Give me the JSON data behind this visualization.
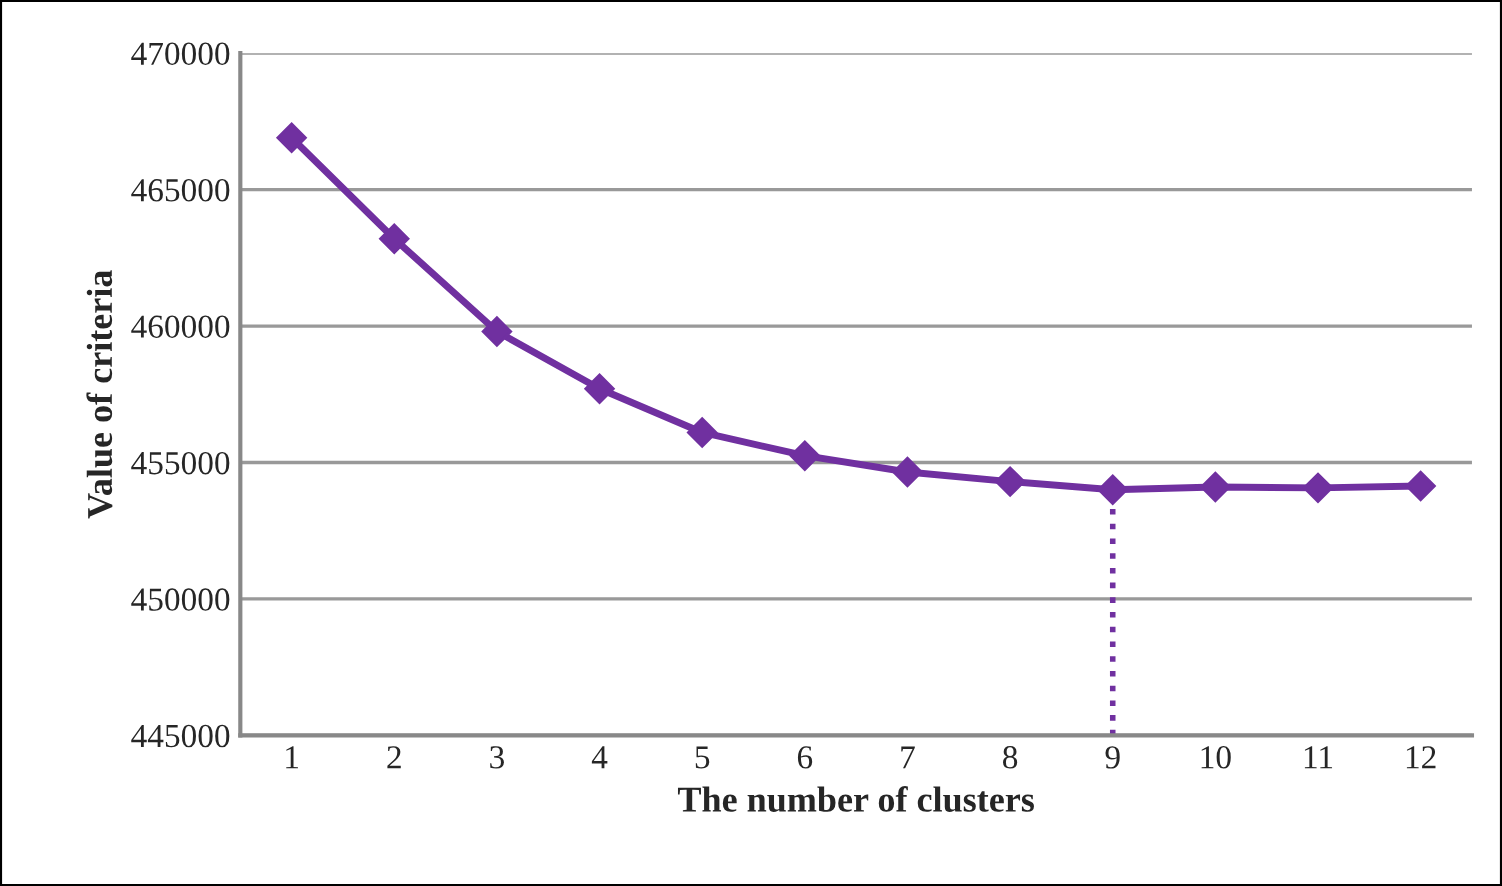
{
  "chart_data": {
    "type": "line",
    "xlabel": "The number of clusters",
    "ylabel": "Value of criteria",
    "x": [
      1,
      2,
      3,
      4,
      5,
      6,
      7,
      8,
      9,
      10,
      11,
      12
    ],
    "series": [
      {
        "color": "#7030a0",
        "values": [
          466900,
          463200,
          459800,
          457700,
          456100,
          455250,
          454650,
          454300,
          454000,
          454100,
          454070,
          454140
        ]
      }
    ],
    "xlim": [
      0.5,
      12.5
    ],
    "xticks": [
      1,
      2,
      3,
      4,
      5,
      6,
      7,
      8,
      9,
      10,
      11,
      12
    ],
    "ylim": [
      445000,
      470000
    ],
    "yticks": [
      445000,
      450000,
      455000,
      460000,
      465000,
      470000
    ],
    "grid": "y",
    "marker": "diamond",
    "line_style": "solid",
    "legend": false,
    "ref_lines": [
      {
        "axis": "x",
        "value": 9,
        "color": "#7030a0",
        "line_style": "dotted"
      }
    ]
  }
}
